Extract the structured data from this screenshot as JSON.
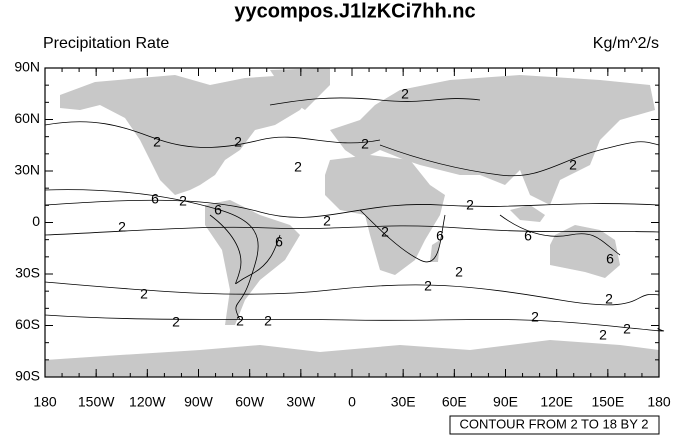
{
  "chart_data": {
    "type": "contour-map",
    "title": "yycompos.J1lzKCi7hh.nc",
    "left_label": "Precipitation Rate",
    "right_label": "Kg/m^2/s",
    "xlim": [
      -180,
      180
    ],
    "ylim": [
      -90,
      90
    ],
    "xticks": [
      {
        "value": -180,
        "label": "180"
      },
      {
        "value": -150,
        "label": "150W"
      },
      {
        "value": -120,
        "label": "120W"
      },
      {
        "value": -90,
        "label": "90W"
      },
      {
        "value": -60,
        "label": "60W"
      },
      {
        "value": -30,
        "label": "30W"
      },
      0,
      {
        "value": 30,
        "label": "30E"
      },
      {
        "value": 60,
        "label": "60E"
      },
      {
        "value": 90,
        "label": "90E"
      },
      {
        "value": 120,
        "label": "120E"
      },
      {
        "value": 150,
        "label": "150E"
      },
      180
    ],
    "yticks": [
      {
        "value": -90,
        "label": "90S"
      },
      {
        "value": -60,
        "label": "60S"
      },
      {
        "value": -30,
        "label": "30S"
      },
      0,
      {
        "value": 30,
        "label": "30N"
      },
      {
        "value": 60,
        "label": "60N"
      },
      {
        "value": 90,
        "label": "90N"
      }
    ],
    "contour_labels": [
      2,
      2,
      2,
      2,
      2,
      2,
      6,
      2,
      6,
      2,
      2,
      2,
      2,
      6,
      6,
      6,
      2,
      2,
      2,
      6,
      2,
      2,
      2,
      2,
      2,
      2,
      2
    ],
    "info_label": "CONTOUR FROM 2 TO 18 BY 2"
  }
}
